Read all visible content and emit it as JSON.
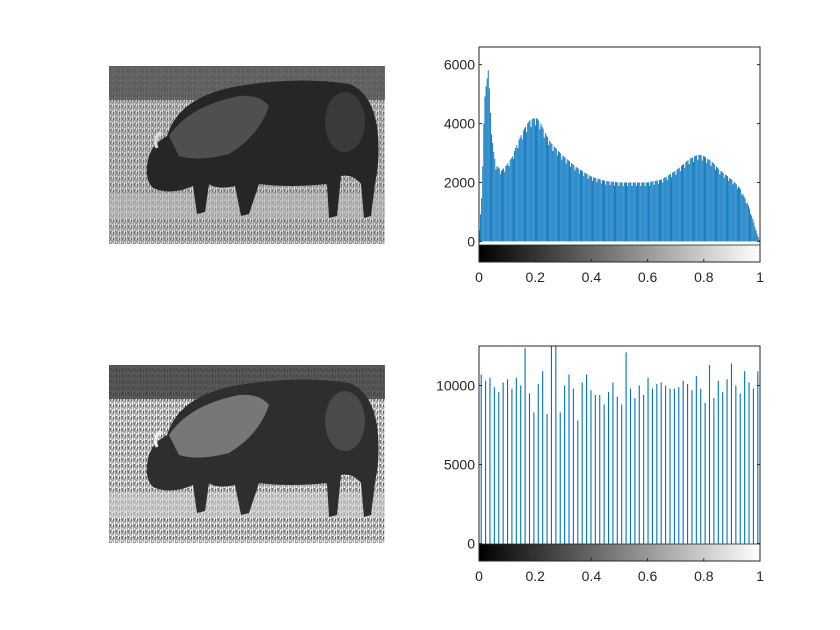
{
  "figure": {
    "panels": [
      {
        "kind": "image",
        "name": "original-grayscale-image",
        "subject": "bison-grayscale-photo-icon"
      },
      {
        "kind": "histogram",
        "name": "original-histogram"
      },
      {
        "kind": "image",
        "name": "equalized-grayscale-image",
        "subject": "bison-grayscale-photo-icon"
      },
      {
        "kind": "histogram",
        "name": "equalized-histogram"
      }
    ]
  },
  "chart_data": [
    {
      "type": "bar",
      "title": "",
      "xlabel": "",
      "ylabel": "",
      "xlim": [
        0,
        1
      ],
      "ylim": [
        -700,
        6600
      ],
      "x_ticks": [
        0,
        0.2,
        0.4,
        0.6,
        0.8,
        1
      ],
      "x_tick_labels": [
        "0",
        "0.2",
        "0.4",
        "0.6",
        "0.8",
        "1"
      ],
      "y_ticks": [
        0,
        2000,
        4000,
        6000
      ],
      "y_tick_labels": [
        "0",
        "2000",
        "4000",
        "6000"
      ],
      "bins": 256,
      "bar_color": "#0072bd",
      "colorbar": "grayscale 0 to 1",
      "grid": false,
      "profile_x": [
        0,
        0.01,
        0.02,
        0.025,
        0.03,
        0.035,
        0.04,
        0.05,
        0.06,
        0.08,
        0.1,
        0.12,
        0.14,
        0.16,
        0.18,
        0.2,
        0.21,
        0.22,
        0.24,
        0.26,
        0.3,
        0.35,
        0.4,
        0.45,
        0.5,
        0.55,
        0.6,
        0.65,
        0.7,
        0.75,
        0.78,
        0.8,
        0.83,
        0.86,
        0.9,
        0.93,
        0.96,
        0.98,
        0.99,
        1.0
      ],
      "profile_y": [
        100,
        1500,
        4800,
        5200,
        6000,
        5700,
        4500,
        3200,
        2600,
        2400,
        2600,
        2900,
        3400,
        3800,
        4100,
        4200,
        4150,
        4000,
        3600,
        3300,
        2900,
        2500,
        2200,
        2050,
        2000,
        2000,
        2000,
        2100,
        2400,
        2800,
        2950,
        2900,
        2700,
        2400,
        2100,
        1800,
        1200,
        600,
        250,
        0
      ]
    },
    {
      "type": "bar",
      "title": "",
      "xlabel": "",
      "ylabel": "",
      "xlim": [
        0,
        1
      ],
      "ylim": [
        -1100,
        12500
      ],
      "x_ticks": [
        0,
        0.2,
        0.4,
        0.6,
        0.8,
        1
      ],
      "x_tick_labels": [
        "0",
        "0.2",
        "0.4",
        "0.6",
        "0.8",
        "1"
      ],
      "y_ticks": [
        0,
        5000,
        10000
      ],
      "y_tick_labels": [
        "0",
        "5000",
        "10000"
      ],
      "bins": 64,
      "bar_color": "#0072bd",
      "colorbar": "grayscale 0 to 1",
      "grid": false,
      "values": [
        10700,
        10300,
        10500,
        9900,
        9600,
        10200,
        10400,
        9800,
        10500,
        10000,
        12400,
        9500,
        8300,
        10100,
        10900,
        8200,
        12500,
        12500,
        8300,
        10000,
        10700,
        9800,
        7800,
        10200,
        10700,
        9700,
        9400,
        9400,
        8800,
        9600,
        10200,
        9300,
        8800,
        12100,
        9800,
        9200,
        10000,
        9400,
        10500,
        9800,
        10100,
        10200,
        10000,
        9800,
        9800,
        9900,
        10300,
        10100,
        9700,
        10600,
        9800,
        8900,
        11300,
        9200,
        10300,
        9600,
        10400,
        11400,
        10000,
        9500,
        10900,
        10200,
        9800,
        10900
      ]
    }
  ]
}
